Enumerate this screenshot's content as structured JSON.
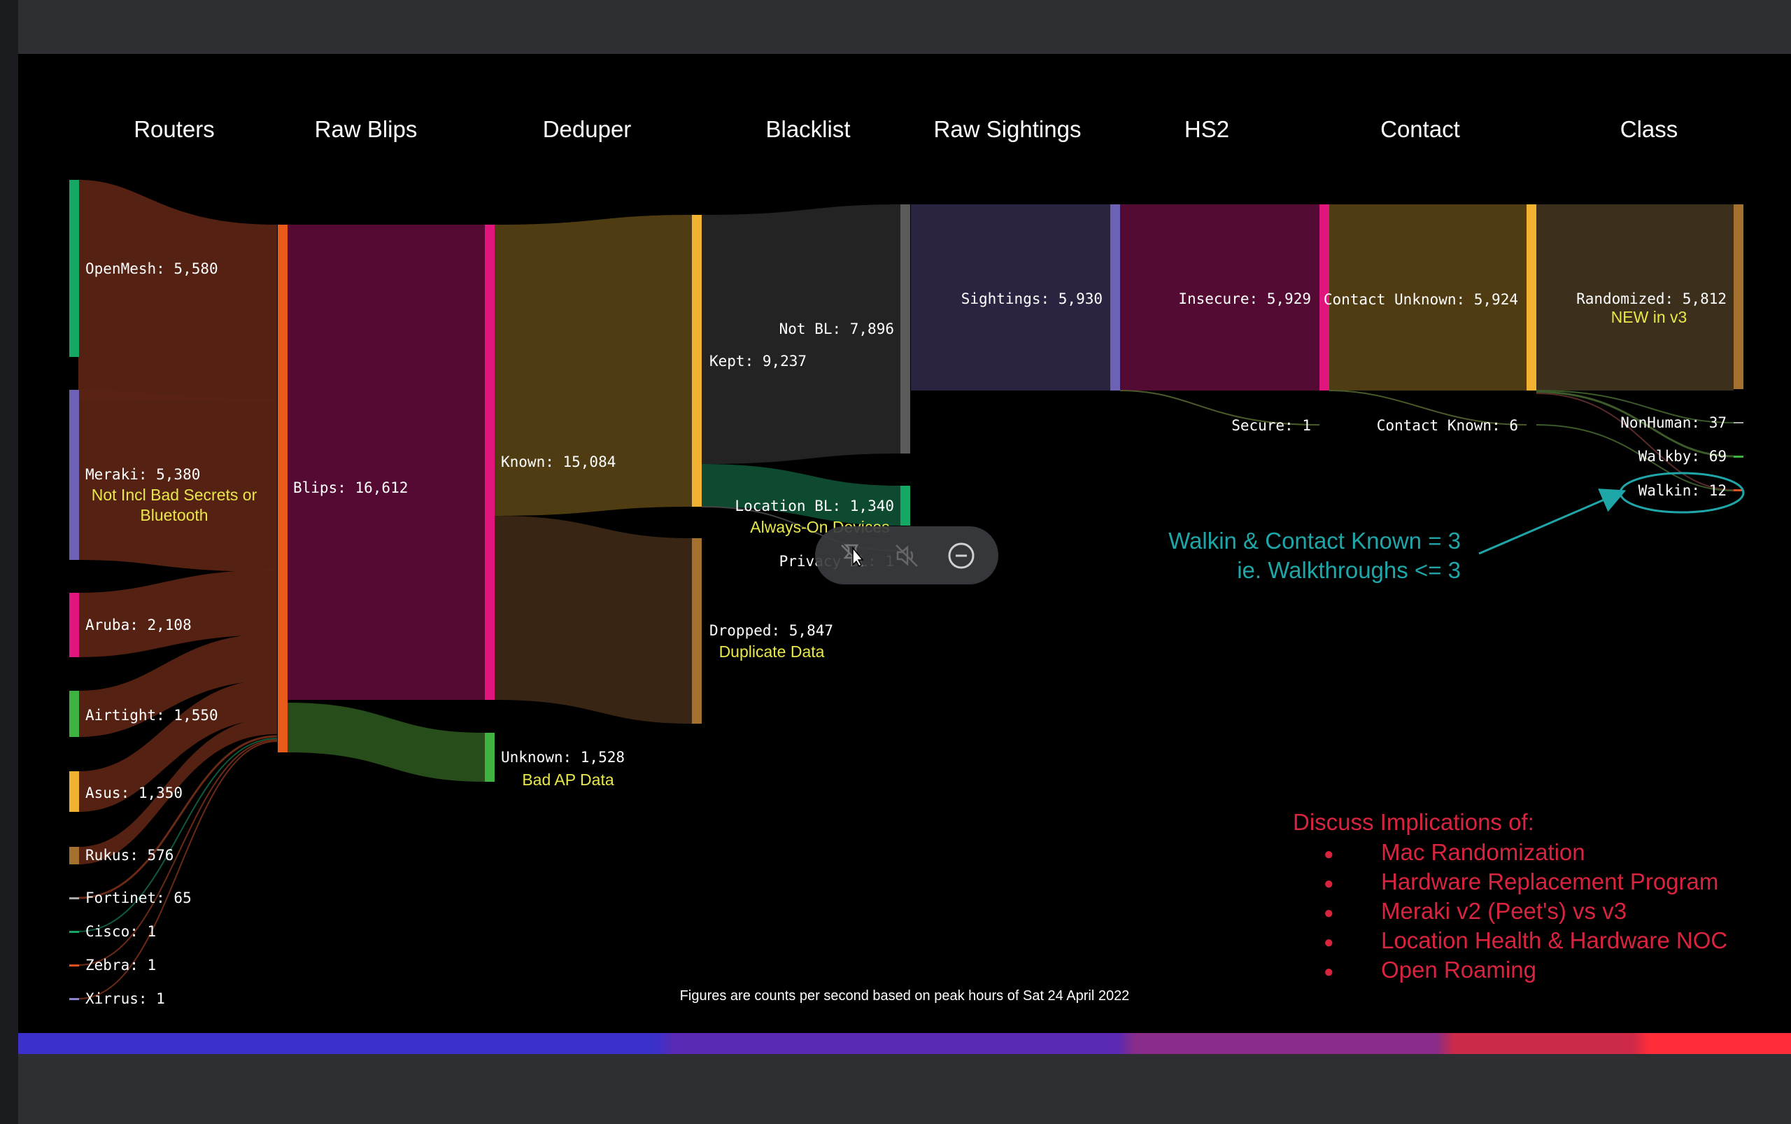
{
  "columns": [
    "Routers",
    "Raw Blips",
    "Deduper",
    "Blacklist",
    "Raw Sightings",
    "HS2",
    "Contact",
    "Class"
  ],
  "nodes": {
    "openmesh": "OpenMesh: 5,580",
    "meraki": "Meraki: 5,380",
    "meraki_note_1": "Not Incl Bad Secrets or",
    "meraki_note_2": "Bluetooth",
    "aruba": "Aruba: 2,108",
    "airtight": "Airtight: 1,550",
    "asus": "Asus: 1,350",
    "rukus": "Rukus: 576",
    "fortinet": "Fortinet: 65",
    "cisco": "Cisco: 1",
    "zebra": "Zebra: 1",
    "xirrus": "Xirrus: 1",
    "blips": "Blips: 16,612",
    "known": "Known: 15,084",
    "unknown": "Unknown: 1,528",
    "unknown_note": "Bad AP Data",
    "kept": "Kept: 9,237",
    "dropped": "Dropped: 5,847",
    "dropped_note": "Duplicate Data",
    "not_bl": "Not BL: 7,896",
    "location_bl": "Location BL: 1,340",
    "location_bl_note": "Always-On Devices",
    "privacy_bl": "Privacy BL: 1",
    "sightings": "Sightings: 5,930",
    "insecure": "Insecure: 5,929",
    "secure": "Secure: 1",
    "contact_unknown": "Contact Unknown: 5,924",
    "contact_known": "Contact Known: 6",
    "randomized": "Randomized: 5,812",
    "randomized_note": "NEW in v3",
    "nonhuman": "NonHuman: 37",
    "walkby": "Walkby: 69",
    "walkin": "Walkin: 12"
  },
  "annotation": {
    "line1": "Walkin & Contact Known = 3",
    "line2": "ie.  Walkthroughs <= 3"
  },
  "discuss": {
    "heading": "Discuss Implications of:",
    "bullet": "●",
    "items": [
      "Mac Randomization",
      "Hardware Replacement Program",
      "Meraki v2 (Peet's) vs v3",
      "Location Health & Hardware NOC",
      "Open Roaming"
    ]
  },
  "footnote": "Figures are counts per second based on peak hours of Sat 24 April 2022",
  "media_controls": {
    "icons": [
      "pin-off-icon",
      "mute-icon",
      "minus-circle-icon"
    ]
  },
  "colors": {
    "title": "#ffffff",
    "label": "#ffffff",
    "note": "#e8e84a",
    "annotation": "#1fa6a8",
    "discuss": "#d8243f"
  }
}
